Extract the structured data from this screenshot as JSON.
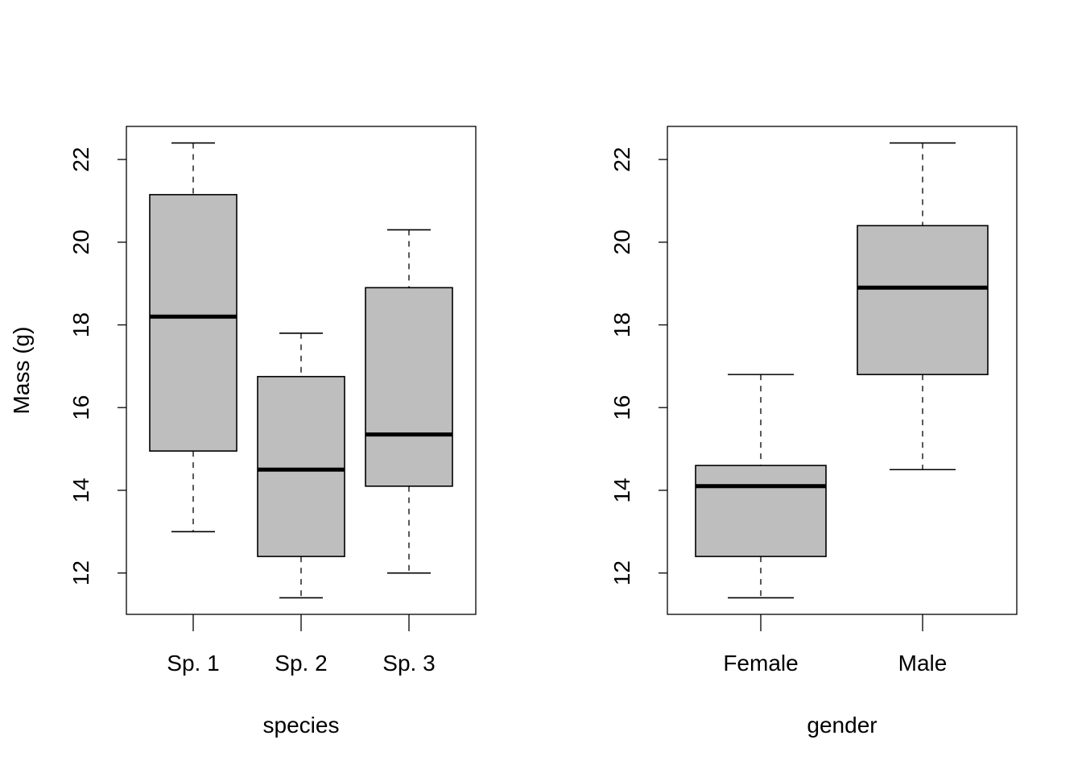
{
  "chart_data": [
    {
      "type": "box",
      "title": "",
      "xlabel": "species",
      "ylabel": "Mass (g)",
      "ylim": [
        11,
        22.8
      ],
      "yticks": [
        12,
        14,
        16,
        18,
        20,
        22
      ],
      "box_color": "#bebebe",
      "categories": [
        "Sp. 1",
        "Sp. 2",
        "Sp. 3"
      ],
      "stats": [
        {
          "min": 13.0,
          "q1": 14.95,
          "median": 18.2,
          "q3": 21.15,
          "max": 22.4
        },
        {
          "min": 11.4,
          "q1": 12.4,
          "median": 14.5,
          "q3": 16.75,
          "max": 17.8
        },
        {
          "min": 12.0,
          "q1": 14.1,
          "median": 15.35,
          "q3": 18.9,
          "max": 20.3
        }
      ]
    },
    {
      "type": "box",
      "title": "",
      "xlabel": "gender",
      "ylabel": "",
      "ylim": [
        11,
        22.8
      ],
      "yticks": [
        12,
        14,
        16,
        18,
        20,
        22
      ],
      "box_color": "#bebebe",
      "categories": [
        "Female",
        "Male"
      ],
      "stats": [
        {
          "min": 11.4,
          "q1": 12.4,
          "median": 14.1,
          "q3": 14.6,
          "max": 16.8
        },
        {
          "min": 14.5,
          "q1": 16.8,
          "median": 18.9,
          "q3": 20.4,
          "max": 22.4
        }
      ]
    }
  ]
}
